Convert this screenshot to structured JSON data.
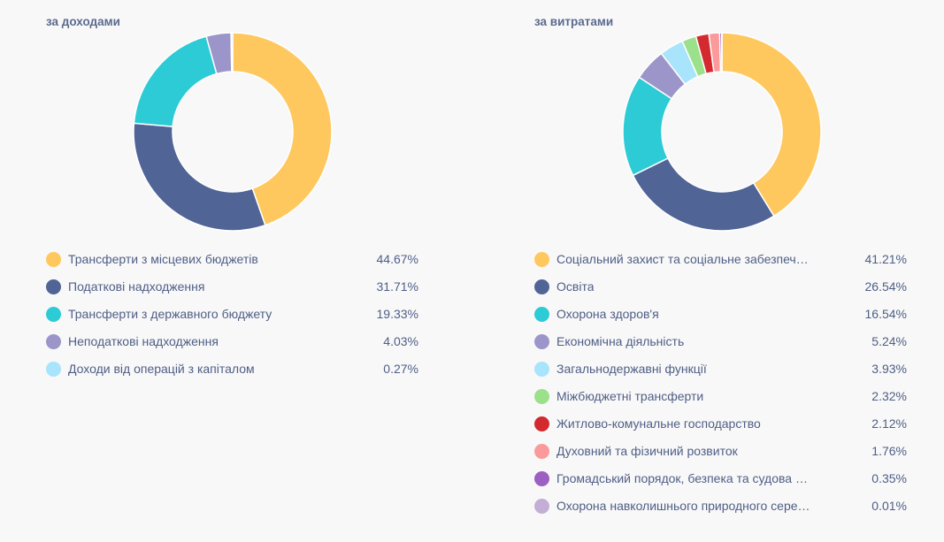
{
  "chart_data": [
    {
      "type": "pie",
      "title": "за доходами",
      "categories": [
        "Трансферти з місцевих бюджетів",
        "Податкові надходження",
        "Трансферти з державного бюджету",
        "Неподаткові надходження",
        "Доходи від операцій з капіталом"
      ],
      "values": [
        44.67,
        31.71,
        19.33,
        4.03,
        0.27
      ],
      "value_labels": [
        "44.67%",
        "31.71%",
        "19.33%",
        "4.03%",
        "0.27%"
      ],
      "colors": [
        "#fec85f",
        "#506496",
        "#2dcbd5",
        "#9c95c9",
        "#a8e4fb"
      ]
    },
    {
      "type": "pie",
      "title": "за витратами",
      "categories": [
        "Соціальний захист та соціальне забезпеч…",
        "Освіта",
        "Охорона здоров'я",
        "Економічна діяльність",
        "Загальнодержавні функції",
        "Міжбюджетні трансферти",
        "Житлово-комунальне господарство",
        "Духовний та фізичний розвиток",
        "Громадський порядок, безпека та судова …",
        "Охорона навколишнього природного сере…"
      ],
      "values": [
        41.21,
        26.54,
        16.54,
        5.24,
        3.93,
        2.32,
        2.12,
        1.76,
        0.35,
        0.01
      ],
      "value_labels": [
        "41.21%",
        "26.54%",
        "16.54%",
        "5.24%",
        "3.93%",
        "2.32%",
        "2.12%",
        "1.76%",
        "0.35%",
        "0.01%"
      ],
      "colors": [
        "#fec85f",
        "#506496",
        "#2dcbd5",
        "#9c95c9",
        "#a8e4fb",
        "#9be08a",
        "#d32a2f",
        "#fb9a9a",
        "#9c5fc2",
        "#c4aed6"
      ]
    }
  ]
}
